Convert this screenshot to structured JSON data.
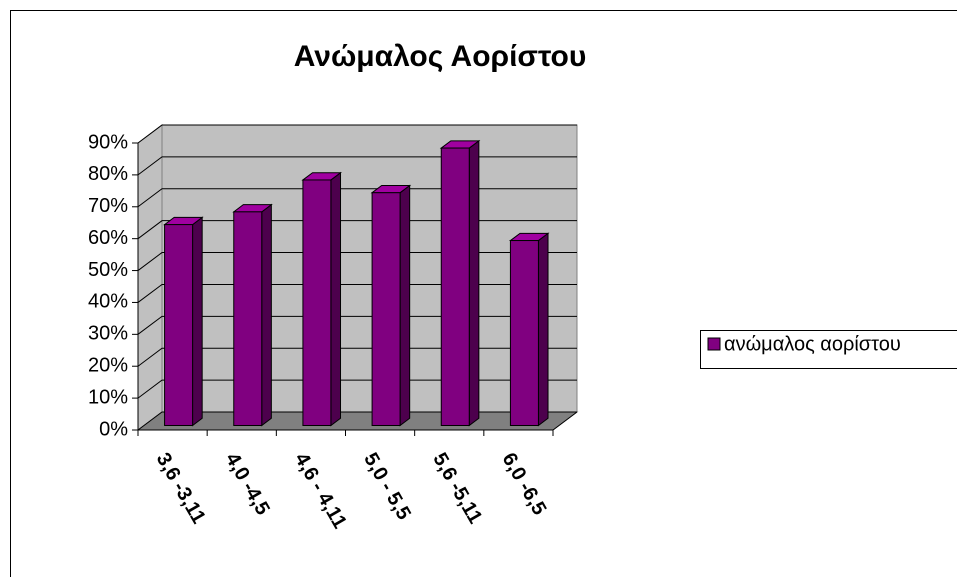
{
  "chart_data": {
    "type": "bar3d",
    "title": "Ανώμαλος Αορίστου",
    "categories": [
      "3,6 -3,11",
      "4,0 -4,5",
      "4,6 - 4,11",
      "5,0 - 5,5",
      "5,6 -5,11",
      "6,0 -6,5"
    ],
    "series": [
      {
        "name": "ανώμαλος αορίστου",
        "color": "#800080",
        "values": [
          63,
          67,
          77,
          73,
          87,
          58
        ]
      }
    ],
    "ylim": [
      0,
      90
    ],
    "yticks": [
      {
        "value": 0,
        "label": "0%"
      },
      {
        "value": 10,
        "label": "10%"
      },
      {
        "value": 20,
        "label": "20%"
      },
      {
        "value": 30,
        "label": "30%"
      },
      {
        "value": 40,
        "label": "40%"
      },
      {
        "value": 50,
        "label": "50%"
      },
      {
        "value": 60,
        "label": "60%"
      },
      {
        "value": 70,
        "label": "70%"
      },
      {
        "value": 80,
        "label": "80%"
      },
      {
        "value": 90,
        "label": "90%"
      }
    ],
    "grid": true,
    "legend": "right"
  }
}
